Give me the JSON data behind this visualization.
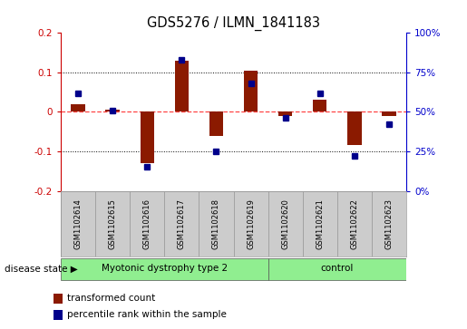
{
  "title": "GDS5276 / ILMN_1841183",
  "samples": [
    "GSM1102614",
    "GSM1102615",
    "GSM1102616",
    "GSM1102617",
    "GSM1102618",
    "GSM1102619",
    "GSM1102620",
    "GSM1102621",
    "GSM1102622",
    "GSM1102623"
  ],
  "transformed_count": [
    0.02,
    0.005,
    -0.13,
    0.13,
    -0.06,
    0.105,
    -0.01,
    0.03,
    -0.085,
    -0.01
  ],
  "percentile_rank": [
    62,
    51,
    15,
    83,
    25,
    68,
    46,
    62,
    22,
    42
  ],
  "ylim_left": [
    -0.2,
    0.2
  ],
  "ylim_right": [
    0,
    100
  ],
  "yticks_left": [
    -0.2,
    -0.1,
    0.0,
    0.1,
    0.2
  ],
  "yticks_right": [
    0,
    25,
    50,
    75,
    100
  ],
  "ytick_labels_right": [
    "0%",
    "25%",
    "50%",
    "75%",
    "100%"
  ],
  "bar_color": "#8B1A00",
  "dot_color": "#00008B",
  "zero_line_color": "#FF4444",
  "grid_color": "#000000",
  "bg_color": "#FFFFFF",
  "label_bg_color": "#CCCCCC",
  "group1_label": "Myotonic dystrophy type 2",
  "group1_color": "#90EE90",
  "group1_indices": [
    0,
    1,
    2,
    3,
    4,
    5
  ],
  "group2_label": "control",
  "group2_color": "#90EE90",
  "group2_indices": [
    6,
    7,
    8,
    9
  ],
  "disease_state_label": "disease state"
}
